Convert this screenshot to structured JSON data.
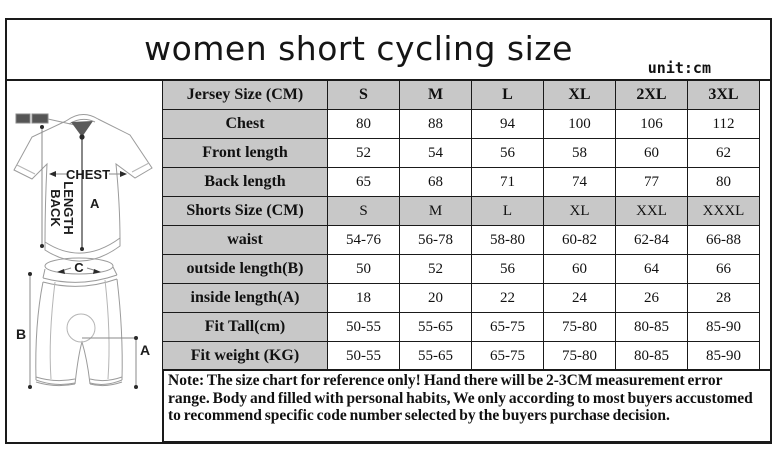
{
  "title": "women short cycling size",
  "unit_label": "unit:cm",
  "table": {
    "rows": [
      {
        "label": "Jersey Size (CM)",
        "values": [
          "S",
          "M",
          "L",
          "XL",
          "2XL",
          "3XL"
        ],
        "is_size_header": true,
        "bold_values": true
      },
      {
        "label": "Chest",
        "values": [
          "80",
          "88",
          "94",
          "100",
          "106",
          "112"
        ]
      },
      {
        "label": "Front length",
        "values": [
          "52",
          "54",
          "56",
          "58",
          "60",
          "62"
        ]
      },
      {
        "label": "Back length",
        "values": [
          "65",
          "68",
          "71",
          "74",
          "77",
          "80"
        ]
      },
      {
        "label": "Shorts Size (CM)",
        "values": [
          "S",
          "M",
          "L",
          "XL",
          "XXL",
          "XXXL"
        ],
        "is_size_header": true
      },
      {
        "label": "waist",
        "values": [
          "54-76",
          "56-78",
          "58-80",
          "60-82",
          "62-84",
          "66-88"
        ]
      },
      {
        "label": "outside length(B)",
        "values": [
          "50",
          "52",
          "56",
          "60",
          "64",
          "66"
        ]
      },
      {
        "label": "inside length(A)",
        "values": [
          "18",
          "20",
          "22",
          "24",
          "26",
          "28"
        ]
      },
      {
        "label": "Fit Tall(cm)",
        "values": [
          "50-55",
          "55-65",
          "65-75",
          "75-80",
          "80-85",
          "85-90"
        ]
      },
      {
        "label": "Fit weight (KG)",
        "values": [
          "50-55",
          "55-65",
          "65-75",
          "75-80",
          "80-85",
          "85-90"
        ]
      }
    ]
  },
  "note": "Note: The size chart for reference only! Hand there will be 2-3CM measurement error range. Body and filled with personal habits, We only according to most buyers accustomed to recommend specific code number selected by the buyers purchase decision.",
  "diagram": {
    "jersey": {
      "chest": "CHEST",
      "back": "BACK",
      "length": "LENGTH",
      "a": "A"
    },
    "shorts": {
      "b": "B",
      "a": "A",
      "c": "C"
    }
  },
  "colors": {
    "header_bg": "#c8c8c8",
    "border": "#1a1a1a",
    "sketch_line": "#9b9b9b"
  }
}
